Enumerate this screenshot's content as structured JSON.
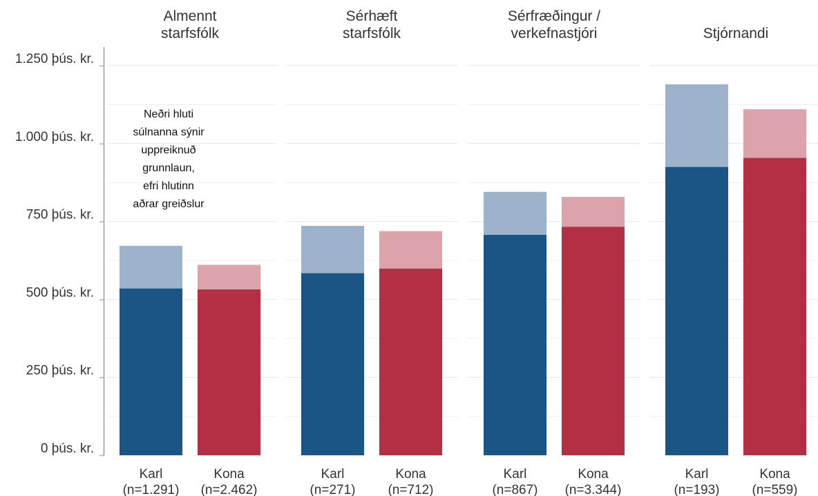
{
  "chart_data": {
    "type": "bar",
    "stacked": true,
    "y_tick_labels": [
      "0 þús. kr.",
      "250 þús. kr.",
      "500 þús. kr.",
      "750 þús. kr.",
      "1.000 þús. kr.",
      "1.250 þús. kr."
    ],
    "y_ticks": [
      0,
      250,
      500,
      750,
      1000,
      1250
    ],
    "ylim": [
      0,
      1250
    ],
    "grid": true,
    "annotation": [
      "Neðri hluti",
      "súlnanna sýnir",
      "uppreiknuð",
      "grunnlaun,",
      "efri hlutinn",
      "aðrar greiðslur"
    ],
    "colors": {
      "karl_base": "#1a5586",
      "karl_other": "#9cb3cb",
      "kona_base": "#b32f43",
      "kona_other": "#dca3ab"
    },
    "panels": [
      {
        "title": [
          "Almennt",
          "starfsfólk"
        ],
        "bars": [
          {
            "group": "Karl",
            "n_label": "(n=1.291)",
            "base": 535,
            "total": 672
          },
          {
            "group": "Kona",
            "n_label": "(n=2.462)",
            "base": 532,
            "total": 611
          }
        ]
      },
      {
        "title": [
          "Sérhæft",
          "starfsfólk"
        ],
        "bars": [
          {
            "group": "Karl",
            "n_label": "(n=271)",
            "base": 584,
            "total": 736
          },
          {
            "group": "Kona",
            "n_label": "(n=712)",
            "base": 599,
            "total": 719
          }
        ]
      },
      {
        "title": [
          "Sérfræðingur /",
          "verkefnastjóri"
        ],
        "bars": [
          {
            "group": "Karl",
            "n_label": "(n=867)",
            "base": 707,
            "total": 845
          },
          {
            "group": "Kona",
            "n_label": "(n=3.344)",
            "base": 733,
            "total": 829
          }
        ]
      },
      {
        "title": [
          "Stjórnandi"
        ],
        "bars": [
          {
            "group": "Karl",
            "n_label": "(n=193)",
            "base": 925,
            "total": 1190
          },
          {
            "group": "Kona",
            "n_label": "(n=559)",
            "base": 954,
            "total": 1110
          }
        ]
      }
    ]
  }
}
